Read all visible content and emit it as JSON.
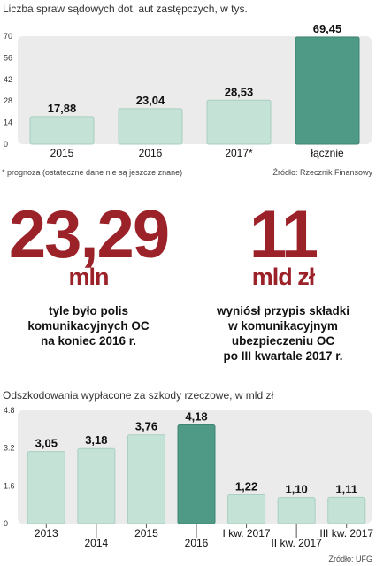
{
  "colors": {
    "bar": "#c4e2d6",
    "bar_edge": "#a9cfc0",
    "highlight": "#4e9a86",
    "plot_bg": "#ebebeb",
    "accent_red": "#9c2229"
  },
  "chart_data": [
    {
      "type": "bar",
      "title": "Liczba spraw sądowych dot. aut zastępczych, w tys.",
      "categories": [
        "2015",
        "2016",
        "2017*",
        "łącznie"
      ],
      "values": [
        17.88,
        23.04,
        28.53,
        69.45
      ],
      "value_labels": [
        "17,88",
        "23,04",
        "28,53",
        "69,45"
      ],
      "highlight_index": 3,
      "ylim": [
        0,
        70
      ],
      "yticks": [
        "0",
        "14",
        "28",
        "42",
        "56",
        "70"
      ],
      "ytick_values": [
        0,
        14,
        28,
        42,
        56,
        70
      ],
      "footnote": "* prognoza (ostateczne dane nie są jeszcze znane)",
      "source": "Źródło: Rzecznik Finansowy",
      "grid": false
    },
    {
      "type": "bar",
      "title": "Odszkodowania wypłacone za szkody rzeczowe, w mld zł",
      "categories": [
        "2013",
        "2014",
        "2015",
        "2016",
        "I kw. 2017",
        "II kw. 2017",
        "III kw. 2017"
      ],
      "values": [
        3.05,
        3.18,
        3.76,
        4.18,
        1.22,
        1.1,
        1.11
      ],
      "value_labels": [
        "3,05",
        "3,18",
        "3,76",
        "4,18",
        "1,22",
        "1,10",
        "1,11"
      ],
      "highlight_index": 3,
      "ylim": [
        0,
        4.8
      ],
      "yticks": [
        "0",
        "1.6",
        "3.2",
        "4.8"
      ],
      "ytick_values": [
        0,
        1.6,
        3.2,
        4.8
      ],
      "source": "Źródło: UFG",
      "grid": false
    }
  ],
  "stats": [
    {
      "value": "23,29",
      "unit": "mln",
      "lines": [
        "tyle było polis",
        "komunikacyjnych OC",
        "na koniec 2016 r."
      ]
    },
    {
      "value": "11",
      "unit": "mld zł",
      "lines": [
        "wyniósł przypis składki",
        "w komunikacyjnym",
        "ubezpieczeniu OC",
        "po III kwartale 2017 r."
      ]
    }
  ]
}
